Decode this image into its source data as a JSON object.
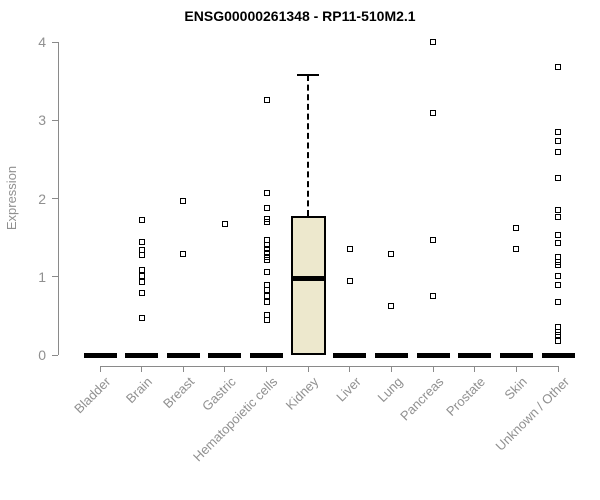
{
  "colors": {
    "background": "#ffffff",
    "title_text": "#000000",
    "axis": "#8a8a8a",
    "label_text": "#909090",
    "box_fill": "#ede8cd",
    "box_stroke": "#000000",
    "marker": "#000000"
  },
  "chart_data": {
    "type": "boxplot",
    "title": "ENSG00000261348 - RP11-510M2.1",
    "ylabel": "Expression",
    "xlabel": "",
    "ylim": [
      0,
      4
    ],
    "yticks": [
      0,
      1,
      2,
      3,
      4
    ],
    "grid": false,
    "legend": false,
    "categories": [
      "Bladder",
      "Brain",
      "Breast",
      "Gastric",
      "Hematopoietic cells",
      "Kidney",
      "Liver",
      "Lung",
      "Pancreas",
      "Prostate",
      "Skin",
      "Unknown / Other"
    ],
    "boxes": [
      {
        "category": "Bladder",
        "q1": 0,
        "median": 0,
        "q3": 0,
        "whisker_low": 0,
        "whisker_high": 0,
        "collapsed": true
      },
      {
        "category": "Brain",
        "q1": 0,
        "median": 0,
        "q3": 0,
        "whisker_low": 0,
        "whisker_high": 0,
        "collapsed": true
      },
      {
        "category": "Breast",
        "q1": 0,
        "median": 0,
        "q3": 0,
        "whisker_low": 0,
        "whisker_high": 0,
        "collapsed": true
      },
      {
        "category": "Gastric",
        "q1": 0,
        "median": 0,
        "q3": 0,
        "whisker_low": 0,
        "whisker_high": 0,
        "collapsed": true
      },
      {
        "category": "Hematopoietic cells",
        "q1": 0,
        "median": 0,
        "q3": 0,
        "whisker_low": 0,
        "whisker_high": 0,
        "collapsed": true
      },
      {
        "category": "Kidney",
        "q1": 0,
        "median": 0.98,
        "q3": 1.77,
        "whisker_low": 0,
        "whisker_high": 3.58,
        "collapsed": false
      },
      {
        "category": "Liver",
        "q1": 0,
        "median": 0,
        "q3": 0,
        "whisker_low": 0,
        "whisker_high": 0,
        "collapsed": true
      },
      {
        "category": "Lung",
        "q1": 0,
        "median": 0,
        "q3": 0,
        "whisker_low": 0,
        "whisker_high": 0,
        "collapsed": true
      },
      {
        "category": "Pancreas",
        "q1": 0,
        "median": 0,
        "q3": 0,
        "whisker_low": 0,
        "whisker_high": 0,
        "collapsed": true
      },
      {
        "category": "Prostate",
        "q1": 0,
        "median": 0,
        "q3": 0,
        "whisker_low": 0,
        "whisker_high": 0,
        "collapsed": true
      },
      {
        "category": "Skin",
        "q1": 0,
        "median": 0,
        "q3": 0,
        "whisker_low": 0,
        "whisker_high": 0,
        "collapsed": true
      },
      {
        "category": "Unknown / Other",
        "q1": 0,
        "median": 0,
        "q3": 0,
        "whisker_low": 0,
        "whisker_high": 0,
        "collapsed": true
      }
    ],
    "points": [
      [],
      [
        1.73,
        1.44,
        1.34,
        1.28,
        1.09,
        1.01,
        0.93,
        0.79,
        0.47
      ],
      [
        1.97,
        1.29
      ],
      [
        1.68
      ],
      [
        3.26,
        2.07,
        1.88,
        1.74,
        1.7,
        1.47,
        1.41,
        1.35,
        1.3,
        1.25,
        1.21,
        1.06,
        0.89,
        0.83,
        0.76,
        0.68,
        0.51,
        0.45
      ],
      [],
      [
        1.35,
        0.94
      ],
      [
        1.29,
        0.63
      ],
      [
        4.0,
        3.09,
        1.47,
        0.75
      ],
      [],
      [
        1.62,
        1.35
      ],
      [
        3.68,
        2.85,
        2.74,
        2.59,
        2.26,
        1.85,
        1.76,
        1.53,
        1.43,
        1.25,
        1.19,
        1.15,
        1.01,
        0.89,
        0.68,
        0.36,
        0.3,
        0.26,
        0.18
      ]
    ]
  }
}
